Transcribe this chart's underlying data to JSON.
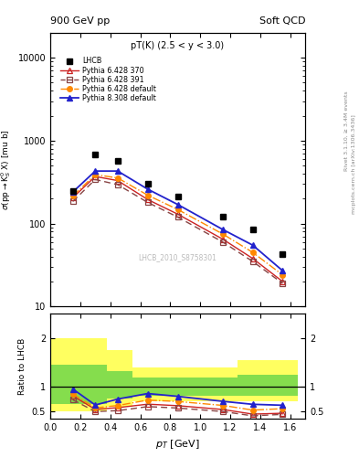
{
  "title_left": "900 GeV pp",
  "title_right": "Soft QCD",
  "annotation": "pT(K) (2.5 < y < 3.0)",
  "watermark": "LHCB_2010_S8758301",
  "rivet_label": "Rivet 3.1.10, ≥ 3.4M events",
  "mcplots_label": "mcplots.cern.ch [arXiv:1306.3436]",
  "ylabel_main": "σ(pprightarrowK°_S X) [mu b]",
  "ylabel_ratio": "Ratio to LHCB",
  "xlabel": "p_T [GeV]",
  "lhcb_x": [
    0.15,
    0.3,
    0.45,
    0.65,
    0.85,
    1.15,
    1.35,
    1.55
  ],
  "lhcb_y": [
    250,
    680,
    570,
    300,
    210,
    120,
    85,
    43
  ],
  "py6_370_x": [
    0.15,
    0.3,
    0.45,
    0.65,
    0.85,
    1.15,
    1.35,
    1.55
  ],
  "py6_370_y": [
    205,
    370,
    330,
    195,
    130,
    65,
    38,
    20
  ],
  "py6_391_x": [
    0.15,
    0.3,
    0.45,
    0.65,
    0.85,
    1.15,
    1.35,
    1.55
  ],
  "py6_391_y": [
    185,
    340,
    295,
    180,
    120,
    60,
    35,
    19
  ],
  "py6_def_x": [
    0.15,
    0.3,
    0.45,
    0.65,
    0.85,
    1.15,
    1.35,
    1.55
  ],
  "py6_def_y": [
    215,
    390,
    355,
    220,
    148,
    75,
    45,
    24
  ],
  "py8_def_x": [
    0.15,
    0.3,
    0.45,
    0.65,
    0.85,
    1.15,
    1.35,
    1.55
  ],
  "py8_def_y": [
    240,
    430,
    430,
    260,
    170,
    85,
    55,
    27
  ],
  "ylim_main": [
    10,
    20000
  ],
  "xlim": [
    0.0,
    1.7
  ],
  "ylim_ratio": [
    0.35,
    2.5
  ],
  "color_lhcb": "#000000",
  "color_py6_370": "#cc2222",
  "color_py6_391": "#884444",
  "color_py6_def": "#ff8800",
  "color_py8_def": "#2222cc",
  "color_yellow": "#ffff44",
  "color_green": "#44cc44"
}
